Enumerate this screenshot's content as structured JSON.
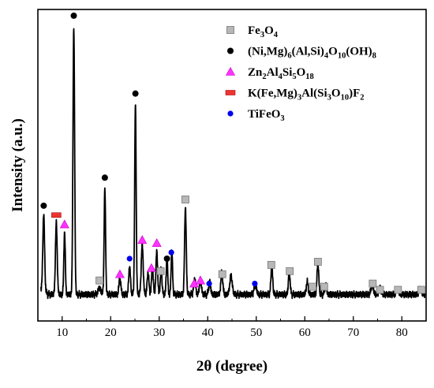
{
  "chart_data": {
    "type": "line",
    "xlabel": "2θ (degree)",
    "ylabel": "Intensity (a.u.)",
    "xlim": [
      5,
      85
    ],
    "ylim": [
      0,
      1
    ],
    "xticks": [
      10,
      20,
      30,
      40,
      50,
      60,
      70,
      80
    ],
    "grid": false,
    "legend_position": "top-right",
    "baseline": 0.085,
    "peaks": [
      {
        "x": 6.2,
        "y": 0.25,
        "w": 0.18
      },
      {
        "x": 8.8,
        "y": 0.23,
        "w": 0.18
      },
      {
        "x": 10.5,
        "y": 0.2,
        "w": 0.15
      },
      {
        "x": 12.4,
        "y": 0.86,
        "w": 0.17
      },
      {
        "x": 17.7,
        "y": 0.02,
        "w": 0.3
      },
      {
        "x": 18.8,
        "y": 0.34,
        "w": 0.15
      },
      {
        "x": 21.9,
        "y": 0.05,
        "w": 0.2
      },
      {
        "x": 23.9,
        "y": 0.09,
        "w": 0.18
      },
      {
        "x": 25.1,
        "y": 0.61,
        "w": 0.15
      },
      {
        "x": 26.5,
        "y": 0.16,
        "w": 0.2
      },
      {
        "x": 27.7,
        "y": 0.07,
        "w": 0.18
      },
      {
        "x": 28.6,
        "y": 0.09,
        "w": 0.17
      },
      {
        "x": 29.5,
        "y": 0.14,
        "w": 0.17
      },
      {
        "x": 30.4,
        "y": 0.08,
        "w": 0.17
      },
      {
        "x": 31.6,
        "y": 0.12,
        "w": 0.15
      },
      {
        "x": 32.6,
        "y": 0.14,
        "w": 0.15
      },
      {
        "x": 35.4,
        "y": 0.28,
        "w": 0.17
      },
      {
        "x": 37.3,
        "y": 0.05,
        "w": 0.2
      },
      {
        "x": 38.5,
        "y": 0.05,
        "w": 0.2
      },
      {
        "x": 40.4,
        "y": 0.04,
        "w": 0.2
      },
      {
        "x": 42.9,
        "y": 0.07,
        "w": 0.2
      },
      {
        "x": 44.8,
        "y": 0.06,
        "w": 0.25
      },
      {
        "x": 49.8,
        "y": 0.03,
        "w": 0.25
      },
      {
        "x": 53.2,
        "y": 0.09,
        "w": 0.18
      },
      {
        "x": 56.8,
        "y": 0.07,
        "w": 0.18
      },
      {
        "x": 60.5,
        "y": 0.04,
        "w": 0.2
      },
      {
        "x": 62.7,
        "y": 0.1,
        "w": 0.18
      },
      {
        "x": 64.3,
        "y": 0.03,
        "w": 0.2
      },
      {
        "x": 73.9,
        "y": 0.03,
        "w": 0.25
      },
      {
        "x": 75.5,
        "y": 0.02,
        "w": 0.25
      },
      {
        "x": 79.1,
        "y": 0.02,
        "w": 0.25
      },
      {
        "x": 83.8,
        "y": 0.02,
        "w": 0.25
      }
    ],
    "legend": [
      {
        "marker": "square",
        "color": "#b7b7b7",
        "stroke": "#777777",
        "parts": [
          [
            "Fe",
            ""
          ],
          [
            "3",
            "sub"
          ],
          [
            "O",
            ""
          ],
          [
            "4",
            "sub"
          ]
        ]
      },
      {
        "marker": "circle",
        "color": "#000000",
        "stroke": "#000000",
        "parts": [
          [
            "(Ni,Mg)",
            ""
          ],
          [
            "6",
            "sub"
          ],
          [
            "(Al,Si)",
            ""
          ],
          [
            "4",
            "sub"
          ],
          [
            "O",
            ""
          ],
          [
            "10",
            "sub"
          ],
          [
            "(OH)",
            ""
          ],
          [
            "8",
            "sub"
          ]
        ]
      },
      {
        "marker": "triangle",
        "color": "#ff33ff",
        "stroke": "#cc00cc",
        "parts": [
          [
            "Zn",
            ""
          ],
          [
            "2",
            "sub"
          ],
          [
            "Al",
            ""
          ],
          [
            "4",
            "sub"
          ],
          [
            "Si",
            ""
          ],
          [
            "5",
            "sub"
          ],
          [
            "O",
            ""
          ],
          [
            "18",
            "sub"
          ]
        ]
      },
      {
        "marker": "rect",
        "color": "#ee3333",
        "stroke": "#aa1111",
        "parts": [
          [
            "K(Fe,Mg)",
            ""
          ],
          [
            "3",
            "sub"
          ],
          [
            "Al(Si",
            ""
          ],
          [
            "3",
            "sub"
          ],
          [
            "O",
            ""
          ],
          [
            "10",
            "sub"
          ],
          [
            ")F",
            ""
          ],
          [
            "2",
            "sub"
          ]
        ]
      },
      {
        "marker": "circle",
        "color": "#0000ee",
        "stroke": "#0000ee",
        "parts": [
          [
            "TiFeO",
            ""
          ],
          [
            "3",
            "sub"
          ]
        ]
      }
    ],
    "markers": [
      {
        "type": "circle",
        "x": 6.2,
        "y": 0.37
      },
      {
        "type": "rect",
        "x": 8.8,
        "y": 0.34
      },
      {
        "type": "triangle",
        "x": 10.5,
        "y": 0.31
      },
      {
        "type": "circle",
        "x": 12.4,
        "y": 0.98
      },
      {
        "type": "square",
        "x": 17.7,
        "y": 0.13
      },
      {
        "type": "circle",
        "x": 18.8,
        "y": 0.46
      },
      {
        "type": "triangle",
        "x": 21.9,
        "y": 0.15
      },
      {
        "type": "blue",
        "x": 23.9,
        "y": 0.2
      },
      {
        "type": "circle",
        "x": 25.1,
        "y": 0.73
      },
      {
        "type": "triangle",
        "x": 26.5,
        "y": 0.26
      },
      {
        "type": "triangle",
        "x": 28.4,
        "y": 0.17
      },
      {
        "type": "triangle",
        "x": 29.5,
        "y": 0.25
      },
      {
        "type": "square",
        "x": 30.3,
        "y": 0.16
      },
      {
        "type": "circle",
        "x": 31.6,
        "y": 0.2
      },
      {
        "type": "blue",
        "x": 32.5,
        "y": 0.22
      },
      {
        "type": "square",
        "x": 35.4,
        "y": 0.39
      },
      {
        "type": "triangle",
        "x": 37.2,
        "y": 0.12
      },
      {
        "type": "triangle",
        "x": 38.5,
        "y": 0.13
      },
      {
        "type": "blue",
        "x": 40.3,
        "y": 0.12
      },
      {
        "type": "square",
        "x": 43.0,
        "y": 0.15
      },
      {
        "type": "blue",
        "x": 49.7,
        "y": 0.12
      },
      {
        "type": "square",
        "x": 53.1,
        "y": 0.18
      },
      {
        "type": "square",
        "x": 56.9,
        "y": 0.16
      },
      {
        "type": "square",
        "x": 61.6,
        "y": 0.11
      },
      {
        "type": "square",
        "x": 62.7,
        "y": 0.19
      },
      {
        "type": "square",
        "x": 64.0,
        "y": 0.11
      },
      {
        "type": "square",
        "x": 74.0,
        "y": 0.12
      },
      {
        "type": "square",
        "x": 75.5,
        "y": 0.1
      },
      {
        "type": "square",
        "x": 79.2,
        "y": 0.1
      },
      {
        "type": "square",
        "x": 84.0,
        "y": 0.1
      }
    ]
  }
}
